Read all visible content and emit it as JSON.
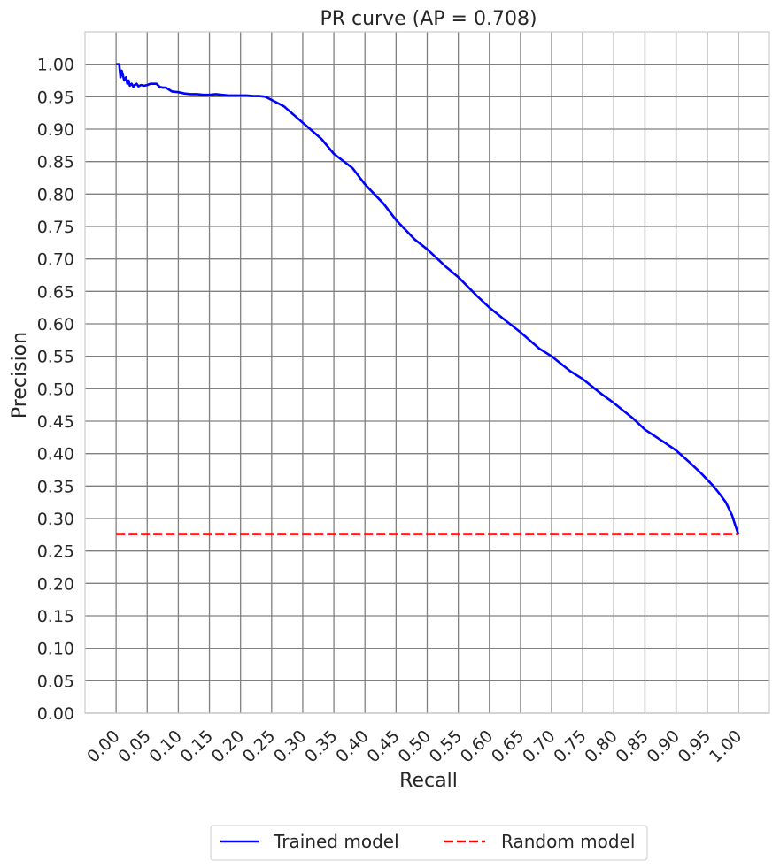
{
  "chart_data": {
    "type": "line",
    "title": "PR curve (AP = 0.708)",
    "xlabel": "Recall",
    "ylabel": "Precision",
    "xlim": [
      -0.05,
      1.05
    ],
    "ylim": [
      0.0,
      1.05
    ],
    "grid": true,
    "x_ticks": [
      "0.00",
      "0.05",
      "0.10",
      "0.15",
      "0.20",
      "0.25",
      "0.30",
      "0.35",
      "0.40",
      "0.45",
      "0.50",
      "0.55",
      "0.60",
      "0.65",
      "0.70",
      "0.75",
      "0.80",
      "0.85",
      "0.90",
      "0.95",
      "1.00"
    ],
    "y_ticks": [
      "0.00",
      "0.05",
      "0.10",
      "0.15",
      "0.20",
      "0.25",
      "0.30",
      "0.35",
      "0.40",
      "0.45",
      "0.50",
      "0.55",
      "0.60",
      "0.65",
      "0.70",
      "0.75",
      "0.80",
      "0.85",
      "0.90",
      "0.95",
      "1.00"
    ],
    "legend_position": "bottom-center",
    "series": [
      {
        "name": "Trained model",
        "color": "#0000ff",
        "style": "solid",
        "x": [
          0.0,
          0.005,
          0.007,
          0.009,
          0.011,
          0.013,
          0.016,
          0.018,
          0.02,
          0.022,
          0.025,
          0.028,
          0.03,
          0.033,
          0.036,
          0.04,
          0.045,
          0.05,
          0.055,
          0.06,
          0.065,
          0.07,
          0.075,
          0.08,
          0.09,
          0.1,
          0.11,
          0.12,
          0.13,
          0.14,
          0.15,
          0.16,
          0.17,
          0.18,
          0.19,
          0.2,
          0.21,
          0.22,
          0.23,
          0.24,
          0.25,
          0.27,
          0.3,
          0.33,
          0.35,
          0.38,
          0.4,
          0.43,
          0.45,
          0.48,
          0.5,
          0.53,
          0.55,
          0.58,
          0.6,
          0.63,
          0.65,
          0.68,
          0.7,
          0.73,
          0.75,
          0.78,
          0.8,
          0.83,
          0.85,
          0.88,
          0.9,
          0.92,
          0.94,
          0.96,
          0.97,
          0.98,
          0.99,
          0.995,
          1.0
        ],
        "y": [
          1.0,
          1.0,
          0.98,
          0.99,
          0.983,
          0.975,
          0.98,
          0.97,
          0.975,
          0.967,
          0.97,
          0.965,
          0.968,
          0.97,
          0.966,
          0.968,
          0.967,
          0.968,
          0.97,
          0.97,
          0.97,
          0.965,
          0.964,
          0.964,
          0.958,
          0.957,
          0.955,
          0.954,
          0.954,
          0.953,
          0.953,
          0.954,
          0.953,
          0.952,
          0.952,
          0.952,
          0.952,
          0.951,
          0.951,
          0.95,
          0.945,
          0.935,
          0.91,
          0.885,
          0.862,
          0.84,
          0.815,
          0.785,
          0.76,
          0.73,
          0.715,
          0.688,
          0.672,
          0.643,
          0.625,
          0.602,
          0.587,
          0.562,
          0.55,
          0.527,
          0.515,
          0.492,
          0.478,
          0.455,
          0.437,
          0.418,
          0.405,
          0.388,
          0.37,
          0.35,
          0.338,
          0.325,
          0.305,
          0.29,
          0.276
        ]
      },
      {
        "name": "Random model",
        "color": "#ff0000",
        "style": "dashed",
        "x": [
          0.0,
          1.0
        ],
        "y": [
          0.276,
          0.276
        ]
      }
    ]
  }
}
